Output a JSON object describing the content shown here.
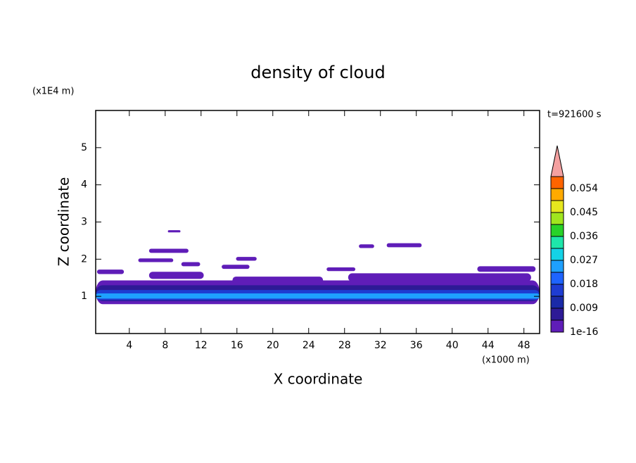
{
  "chart_data": {
    "type": "contour",
    "title": "density of cloud",
    "xlabel": "X coordinate",
    "ylabel": "Z coordinate",
    "x_unit": "(x1000 m)",
    "y_unit": "(x1E4 m)",
    "time_label": "t=921600 s",
    "xlim": [
      0.25,
      49.75
    ],
    "ylim": [
      0,
      6
    ],
    "xticks": [
      4,
      8,
      12,
      16,
      20,
      24,
      28,
      32,
      36,
      40,
      44,
      48
    ],
    "yticks": [
      1,
      2,
      3,
      4,
      5
    ],
    "colorbar": {
      "levels": [
        1e-16,
        0.0045,
        0.009,
        0.0135,
        0.018,
        0.0225,
        0.027,
        0.0315,
        0.036,
        0.0405,
        0.045,
        0.0495,
        0.054,
        0.0585
      ],
      "colors": [
        "#5f1db8",
        "#2d1a96",
        "#1a2aa8",
        "#1e3cd2",
        "#1e64ff",
        "#1ea0ff",
        "#14d2e6",
        "#1ee6aa",
        "#28d228",
        "#a0e61e",
        "#e6e61e",
        "#ffaa00",
        "#ff6400"
      ],
      "over_color": "#f4a0a0",
      "ticks": [
        1e-16,
        0.009,
        0.018,
        0.027,
        0.036,
        0.045,
        0.054
      ]
    },
    "regions": [
      {
        "value": 1e-16,
        "x": [
          0.25,
          49.75
        ],
        "z": [
          0.79,
          1.43
        ]
      },
      {
        "value": 0.0045,
        "x": [
          0.25,
          49.75
        ],
        "z": [
          0.87,
          1.3
        ]
      },
      {
        "value": 0.0135,
        "x": [
          0.25,
          49.75
        ],
        "z": [
          0.9,
          1.17
        ]
      },
      {
        "value": 0.0225,
        "x": [
          0.25,
          49.75
        ],
        "z": [
          0.94,
          1.08
        ]
      },
      {
        "value": 1e-16,
        "x": [
          0.4,
          3.4
        ],
        "z": [
          1.6,
          1.72
        ]
      },
      {
        "value": 1e-16,
        "x": [
          5.0,
          8.9
        ],
        "z": [
          1.92,
          2.02
        ]
      },
      {
        "value": 1e-16,
        "x": [
          6.2,
          10.6
        ],
        "z": [
          2.17,
          2.28
        ]
      },
      {
        "value": 1e-16,
        "x": [
          8.3,
          9.7
        ],
        "z": [
          2.72,
          2.78
        ]
      },
      {
        "value": 1e-16,
        "x": [
          6.2,
          12.3
        ],
        "z": [
          1.47,
          1.66
        ]
      },
      {
        "value": 1e-16,
        "x": [
          9.8,
          11.9
        ],
        "z": [
          1.81,
          1.92
        ]
      },
      {
        "value": 1e-16,
        "x": [
          14.3,
          17.4
        ],
        "z": [
          1.74,
          1.85
        ]
      },
      {
        "value": 1e-16,
        "x": [
          15.9,
          18.2
        ],
        "z": [
          1.96,
          2.06
        ]
      },
      {
        "value": 1e-16,
        "x": [
          15.5,
          25.6
        ],
        "z": [
          1.34,
          1.53
        ]
      },
      {
        "value": 1e-16,
        "x": [
          26.0,
          29.2
        ],
        "z": [
          1.68,
          1.78
        ]
      },
      {
        "value": 1e-16,
        "x": [
          29.6,
          31.3
        ],
        "z": [
          2.3,
          2.4
        ]
      },
      {
        "value": 1e-16,
        "x": [
          32.7,
          36.6
        ],
        "z": [
          2.32,
          2.43
        ]
      },
      {
        "value": 1e-16,
        "x": [
          28.4,
          48.8
        ],
        "z": [
          1.4,
          1.62
        ]
      },
      {
        "value": 1e-16,
        "x": [
          42.8,
          49.3
        ],
        "z": [
          1.66,
          1.81
        ]
      }
    ]
  }
}
